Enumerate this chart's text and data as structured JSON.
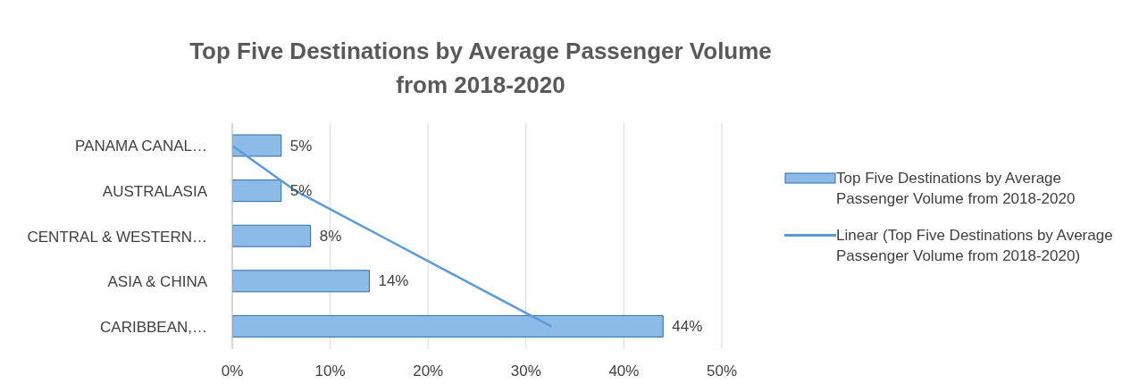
{
  "chart_data": {
    "type": "bar",
    "orientation": "horizontal",
    "title": "Top Five Destinations by Average Passenger Volume from 2018-2020",
    "categories": [
      "PANAMA CANAL…",
      "AUSTRALASIA",
      "CENTRAL & WESTERN…",
      "ASIA & CHINA",
      "CARIBBEAN,…"
    ],
    "series": [
      {
        "name": "Top Five Destinations by Average Passenger Volume from 2018-2020",
        "color": "#8dbbe8",
        "values": [
          5,
          5,
          8,
          14,
          44
        ],
        "value_labels": [
          "5%",
          "5%",
          "8%",
          "14%",
          "44%"
        ]
      },
      {
        "type": "line",
        "name": "Linear (Top Five Destinations by Average Passenger Volume from 2018-2020)",
        "color": "#5b9bd5",
        "values": [
          0,
          6.5,
          15.2,
          23.9,
          32.6
        ]
      }
    ],
    "xlim": [
      0,
      50
    ],
    "xticks": [
      {
        "value": 0,
        "label": "0%"
      },
      {
        "value": 10,
        "label": "10%"
      },
      {
        "value": 20,
        "label": "20%"
      },
      {
        "value": 30,
        "label": "30%"
      },
      {
        "value": 40,
        "label": "40%"
      },
      {
        "value": 50,
        "label": "50%"
      }
    ],
    "grid": "x",
    "legend": "right"
  }
}
